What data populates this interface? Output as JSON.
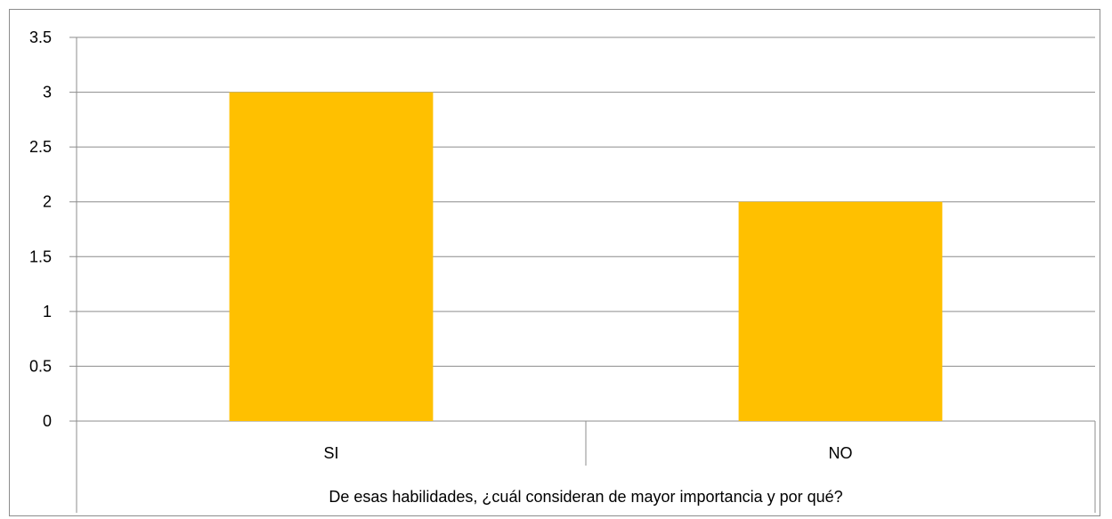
{
  "chart_data": {
    "type": "bar",
    "categories": [
      "SI",
      "NO"
    ],
    "values": [
      3,
      2
    ],
    "ylim": [
      0,
      3.5
    ],
    "yticks": [
      0,
      0.5,
      1,
      1.5,
      2,
      2.5,
      3,
      3.5
    ],
    "ytick_labels": [
      "0",
      "0.5",
      "1",
      "1.5",
      "2",
      "2.5",
      "3",
      "3.5"
    ],
    "xlabel": "De esas habilidades, ¿cuál consideran de mayor importancia y por qué?",
    "ylabel": "",
    "title": "",
    "grid": true,
    "legend": "none",
    "colors": {
      "bar": "#FFC000",
      "grid": "#8c8c8c",
      "axis": "#8c8c8c"
    }
  }
}
